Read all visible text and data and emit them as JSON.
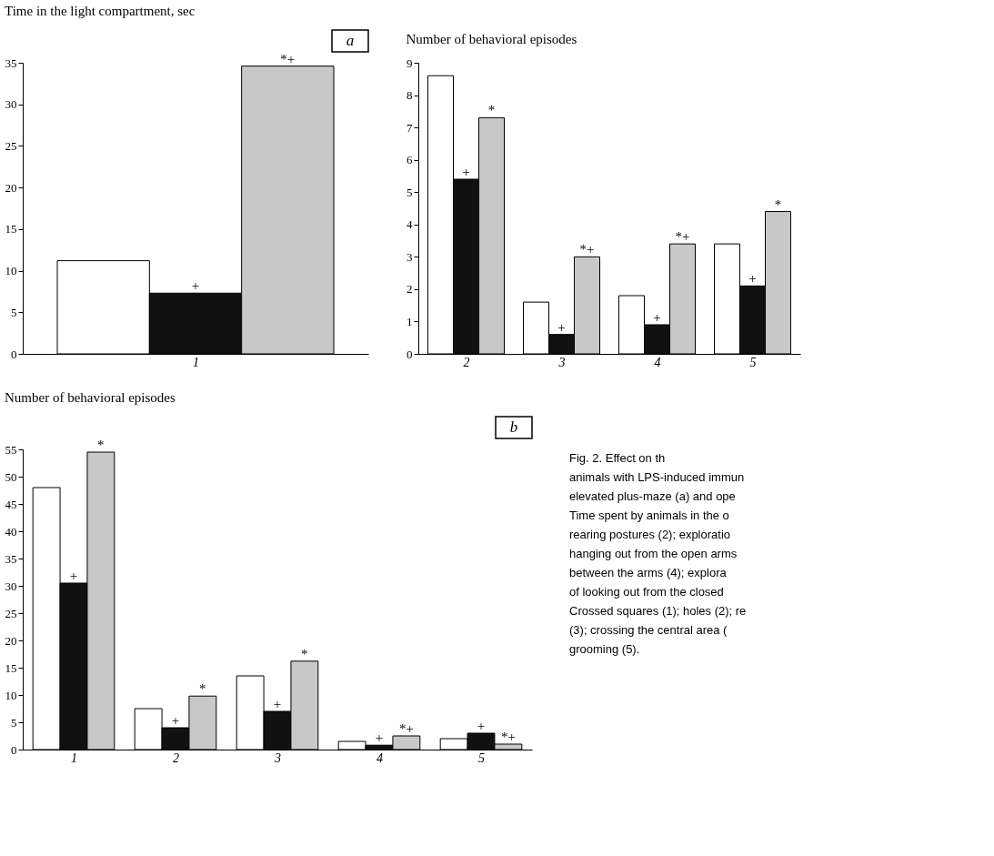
{
  "chart_data": [
    {
      "type": "bar",
      "ylabel": "Time in the light compartment, sec",
      "annotations": [
        "a"
      ],
      "categories": [
        "1"
      ],
      "ylim": [
        0,
        35
      ],
      "yticks": [
        0,
        5,
        10,
        15,
        20,
        25,
        30,
        35
      ],
      "grid": false,
      "legend": false,
      "series": [
        {
          "color": "#ffffff",
          "values": [
            11.2
          ],
          "value_labels": [
            null
          ]
        },
        {
          "color": "#111111",
          "values": [
            7.3
          ],
          "value_labels": [
            "+"
          ]
        },
        {
          "color": "#c8c8c8",
          "values": [
            34.6
          ],
          "value_labels": [
            "*+"
          ]
        }
      ]
    },
    {
      "type": "bar",
      "ylabel": "Number of behavioral episodes",
      "categories": [
        "2",
        "3",
        "4",
        "5"
      ],
      "ylim": [
        0,
        9
      ],
      "yticks": [
        0,
        1,
        2,
        3,
        4,
        5,
        6,
        7,
        8,
        9
      ],
      "grid": false,
      "legend": false,
      "series": [
        {
          "color": "#ffffff",
          "values": [
            8.6,
            1.6,
            1.8,
            3.4
          ],
          "value_labels": [
            null,
            null,
            null,
            null
          ]
        },
        {
          "color": "#111111",
          "values": [
            5.4,
            0.6,
            0.9,
            2.1
          ],
          "value_labels": [
            "+",
            "+",
            "+",
            "+"
          ]
        },
        {
          "color": "#c8c8c8",
          "values": [
            7.3,
            3.0,
            3.4,
            4.4
          ],
          "value_labels": [
            "*",
            "*+",
            "*+",
            "*"
          ]
        }
      ]
    },
    {
      "type": "bar",
      "ylabel": "Number of behavioral episodes",
      "annotations": [
        "b"
      ],
      "categories": [
        "1",
        "2",
        "3",
        "4",
        "5"
      ],
      "ylim": [
        0,
        55
      ],
      "yticks": [
        0,
        5,
        10,
        15,
        20,
        25,
        30,
        35,
        40,
        45,
        50,
        55
      ],
      "grid": false,
      "legend": false,
      "series": [
        {
          "color": "#ffffff",
          "values": [
            48,
            7.5,
            13.5,
            1.5,
            2
          ],
          "value_labels": [
            null,
            null,
            null,
            null,
            null
          ]
        },
        {
          "color": "#111111",
          "values": [
            30.5,
            4,
            7,
            0.8,
            3
          ],
          "value_labels": [
            "+",
            "+",
            "+",
            "+",
            "+"
          ]
        },
        {
          "color": "#c8c8c8",
          "values": [
            54.5,
            9.8,
            16.2,
            2.5,
            1
          ],
          "value_labels": [
            "*",
            "*",
            "*",
            "*+",
            "*+"
          ]
        }
      ]
    },
    {
      "type": "other",
      "annotations": [
        "Fig. 2. Effect on th",
        "animals with LPS-induced immun",
        "elevated plus-maze (a) and ope",
        "Time spent by animals in the o",
        "rearing postures (2); exploratio",
        "hanging out from the open arms",
        "between the arms (4); explora",
        "of looking out from the closed",
        "Crossed squares (1); holes (2); re",
        "(3); crossing the central area (",
        "grooming (5)."
      ]
    }
  ]
}
